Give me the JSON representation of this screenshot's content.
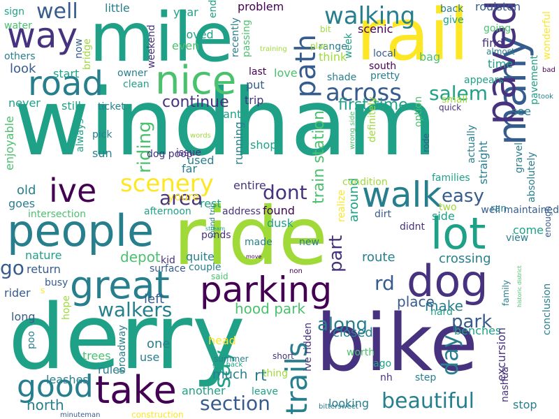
{
  "palette": {
    "c0": "#440154",
    "c1": "#46327e",
    "c2": "#365c8d",
    "c3": "#277f8e",
    "c4": "#1fa187",
    "c5": "#4ac16d",
    "c6": "#a0da39",
    "c7": "#fde725"
  },
  "words": [
    "windham",
    "derry",
    "bike",
    "ride",
    "mile",
    "rail",
    "people",
    "parking",
    "great",
    "dog",
    "nice",
    "way",
    "road",
    "walk",
    "take",
    "lot",
    "many",
    "paved",
    "ive",
    "walking",
    "across",
    "path",
    "scenery",
    "good",
    "beautiful",
    "trails",
    "section",
    "walkers",
    "area",
    "salem",
    "well",
    "riding",
    "park",
    "along",
    "say",
    "rd",
    "easy",
    "dont",
    "day",
    "part",
    "first time",
    "train station",
    "around",
    "continue",
    "entire",
    "hood park",
    "go",
    "old",
    "depot",
    "crossing",
    "scenic",
    "see",
    "find",
    "time",
    "love",
    "look",
    "never",
    "still",
    "little",
    "year",
    "end",
    "loved",
    "even",
    "problem",
    "week",
    "think",
    "south",
    "local",
    "roulston",
    "wonderful",
    "pavement",
    "bag",
    "pretty",
    "range",
    "bit",
    "plan",
    "back",
    "give",
    "going",
    "almost",
    "bad",
    "took",
    "appears",
    "quick",
    "small",
    "absolutely",
    "gravel",
    "well maintained",
    "enough",
    "come",
    "view",
    "route",
    "side",
    "two",
    "ran",
    "nature",
    "return",
    "rider",
    "long",
    "busy",
    "kid",
    "surface",
    "couple",
    "quite",
    "ponds",
    "made",
    "new",
    "north",
    "one",
    "left",
    "use",
    "much",
    "another",
    "leave",
    "rt",
    "closed",
    "worth",
    "ago",
    "nh",
    "step",
    "stop",
    "looking",
    "benches",
    "excursion",
    "nashua",
    "hard",
    "conclusion",
    "family",
    "historic district",
    "leashes",
    "trees",
    "rules",
    "broadway",
    "poo",
    "hope",
    "head",
    "summer",
    "got back",
    "short",
    "thing",
    "ive ridden",
    "round trip",
    "bittersweet",
    "construction",
    "minuteman",
    "sign",
    "water",
    "others",
    "now",
    "bridge",
    "start",
    "weekend",
    "owner",
    "clean",
    "recently",
    "passing",
    "last",
    "put",
    "shade",
    "training",
    "trip",
    "want",
    "ticket",
    "sun",
    "pick",
    "always",
    "enjoyable",
    "goes",
    "intersection",
    "afternoon",
    "youre",
    "rest",
    "address",
    "found",
    "dusk",
    "move",
    "stream",
    "said",
    "non",
    "realize",
    "didnt",
    "used",
    "words",
    "wrong side",
    "definitely",
    "dirt",
    "condition",
    "option",
    "rode",
    "actually",
    "straight",
    "families",
    "far",
    "issue",
    "dog poop",
    "shop",
    "running",
    "make",
    "place",
    "s"
  ]
}
